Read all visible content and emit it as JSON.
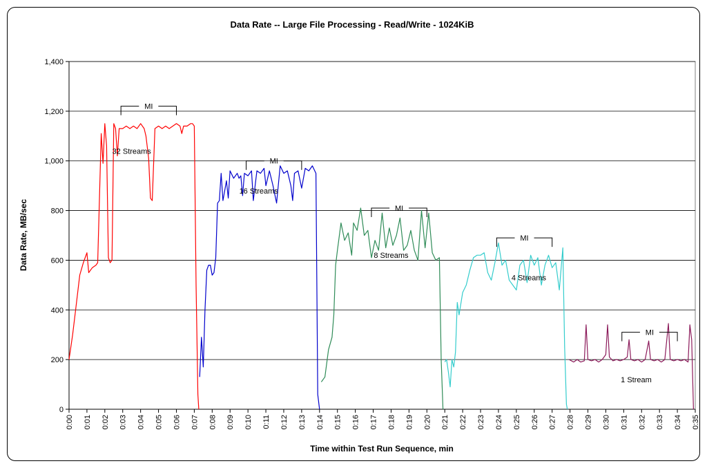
{
  "chart_data": {
    "type": "line",
    "title": "Data Rate -- Large File Processing - Read/Write - 1024KiB",
    "xlabel": "Time within Test Run Sequence, min",
    "ylabel": "Data Rate, MB/sec",
    "xlim": [
      0,
      35
    ],
    "ylim": [
      0,
      1400
    ],
    "grid": true,
    "y_ticks": [
      {
        "value": 0,
        "label": "0"
      },
      {
        "value": 200,
        "label": "200"
      },
      {
        "value": 400,
        "label": "400"
      },
      {
        "value": 600,
        "label": "600"
      },
      {
        "value": 800,
        "label": "800"
      },
      {
        "value": 1000,
        "label": "1,000"
      },
      {
        "value": 1200,
        "label": "1,200"
      },
      {
        "value": 1400,
        "label": "1,400"
      }
    ],
    "x_ticks": [
      "0:00",
      "0:01",
      "0:02",
      "0:03",
      "0:04",
      "0:05",
      "0:06",
      "0:07",
      "0:08",
      "0:09",
      "0:10",
      "0:11",
      "0:12",
      "0:13",
      "0:14",
      "0:15",
      "0:16",
      "0:17",
      "0:18",
      "0:19",
      "0:20",
      "0:21",
      "0:22",
      "0:23",
      "0:24",
      "0:25",
      "0:26",
      "0:27",
      "0:28",
      "0:29",
      "0:30",
      "0:31",
      "0:32",
      "0:33",
      "0:34",
      "0:35"
    ],
    "series": [
      {
        "label": "32 Streams",
        "color": "#ff0000",
        "points": [
          [
            0.0,
            200
          ],
          [
            0.2,
            300
          ],
          [
            0.4,
            420
          ],
          [
            0.6,
            540
          ],
          [
            0.8,
            590
          ],
          [
            1.0,
            630
          ],
          [
            1.1,
            550
          ],
          [
            1.3,
            570
          ],
          [
            1.5,
            580
          ],
          [
            1.6,
            590
          ],
          [
            1.8,
            1110
          ],
          [
            1.9,
            990
          ],
          [
            2.0,
            1150
          ],
          [
            2.1,
            1060
          ],
          [
            2.2,
            610
          ],
          [
            2.3,
            590
          ],
          [
            2.4,
            600
          ],
          [
            2.5,
            1150
          ],
          [
            2.6,
            1130
          ],
          [
            2.7,
            1020
          ],
          [
            2.8,
            1130
          ],
          [
            3.0,
            1130
          ],
          [
            3.2,
            1140
          ],
          [
            3.4,
            1130
          ],
          [
            3.6,
            1140
          ],
          [
            3.8,
            1130
          ],
          [
            4.0,
            1150
          ],
          [
            4.2,
            1130
          ],
          [
            4.3,
            1100
          ],
          [
            4.45,
            1010
          ],
          [
            4.55,
            850
          ],
          [
            4.65,
            840
          ],
          [
            4.8,
            1130
          ],
          [
            5.0,
            1140
          ],
          [
            5.2,
            1130
          ],
          [
            5.4,
            1140
          ],
          [
            5.6,
            1130
          ],
          [
            5.8,
            1140
          ],
          [
            6.0,
            1150
          ],
          [
            6.2,
            1140
          ],
          [
            6.3,
            1110
          ],
          [
            6.4,
            1140
          ],
          [
            6.6,
            1140
          ],
          [
            6.8,
            1150
          ],
          [
            6.9,
            1150
          ],
          [
            7.0,
            1140
          ],
          [
            7.1,
            500
          ],
          [
            7.2,
            60
          ],
          [
            7.25,
            0
          ]
        ]
      },
      {
        "label": "16 Streams",
        "color": "#0000cc",
        "points": [
          [
            7.3,
            130
          ],
          [
            7.4,
            290
          ],
          [
            7.5,
            170
          ],
          [
            7.6,
            400
          ],
          [
            7.7,
            560
          ],
          [
            7.8,
            580
          ],
          [
            7.9,
            580
          ],
          [
            8.0,
            540
          ],
          [
            8.1,
            550
          ],
          [
            8.2,
            610
          ],
          [
            8.3,
            830
          ],
          [
            8.4,
            840
          ],
          [
            8.5,
            950
          ],
          [
            8.6,
            840
          ],
          [
            8.8,
            920
          ],
          [
            8.9,
            850
          ],
          [
            9.0,
            960
          ],
          [
            9.2,
            930
          ],
          [
            9.4,
            950
          ],
          [
            9.5,
            930
          ],
          [
            9.6,
            940
          ],
          [
            9.7,
            860
          ],
          [
            9.8,
            950
          ],
          [
            10.0,
            940
          ],
          [
            10.2,
            960
          ],
          [
            10.3,
            840
          ],
          [
            10.5,
            960
          ],
          [
            10.7,
            950
          ],
          [
            10.9,
            970
          ],
          [
            11.0,
            900
          ],
          [
            11.2,
            960
          ],
          [
            11.4,
            900
          ],
          [
            11.6,
            830
          ],
          [
            11.8,
            980
          ],
          [
            12.0,
            950
          ],
          [
            12.2,
            960
          ],
          [
            12.4,
            900
          ],
          [
            12.5,
            840
          ],
          [
            12.6,
            950
          ],
          [
            12.8,
            960
          ],
          [
            13.0,
            890
          ],
          [
            13.2,
            970
          ],
          [
            13.4,
            960
          ],
          [
            13.6,
            980
          ],
          [
            13.8,
            950
          ],
          [
            13.9,
            60
          ],
          [
            14.0,
            0
          ]
        ]
      },
      {
        "label": "8 Streams",
        "color": "#2e8b57",
        "points": [
          [
            14.1,
            110
          ],
          [
            14.3,
            130
          ],
          [
            14.5,
            240
          ],
          [
            14.7,
            290
          ],
          [
            14.8,
            380
          ],
          [
            14.9,
            580
          ],
          [
            15.0,
            640
          ],
          [
            15.2,
            750
          ],
          [
            15.4,
            680
          ],
          [
            15.6,
            710
          ],
          [
            15.8,
            620
          ],
          [
            15.9,
            750
          ],
          [
            16.1,
            720
          ],
          [
            16.3,
            810
          ],
          [
            16.5,
            700
          ],
          [
            16.7,
            720
          ],
          [
            16.9,
            610
          ],
          [
            17.1,
            680
          ],
          [
            17.3,
            640
          ],
          [
            17.5,
            790
          ],
          [
            17.7,
            650
          ],
          [
            17.9,
            730
          ],
          [
            18.1,
            660
          ],
          [
            18.3,
            700
          ],
          [
            18.5,
            770
          ],
          [
            18.7,
            640
          ],
          [
            18.9,
            660
          ],
          [
            19.1,
            720
          ],
          [
            19.3,
            640
          ],
          [
            19.5,
            600
          ],
          [
            19.7,
            800
          ],
          [
            19.9,
            650
          ],
          [
            20.1,
            790
          ],
          [
            20.3,
            630
          ],
          [
            20.5,
            600
          ],
          [
            20.7,
            610
          ],
          [
            20.8,
            200
          ],
          [
            20.9,
            0
          ]
        ]
      },
      {
        "label": "4 Streams",
        "color": "#33cccc",
        "points": [
          [
            21.0,
            190
          ],
          [
            21.1,
            200
          ],
          [
            21.2,
            150
          ],
          [
            21.3,
            90
          ],
          [
            21.4,
            200
          ],
          [
            21.5,
            170
          ],
          [
            21.6,
            230
          ],
          [
            21.7,
            430
          ],
          [
            21.8,
            380
          ],
          [
            22.0,
            470
          ],
          [
            22.2,
            500
          ],
          [
            22.4,
            560
          ],
          [
            22.6,
            610
          ],
          [
            22.8,
            620
          ],
          [
            23.0,
            620
          ],
          [
            23.2,
            630
          ],
          [
            23.4,
            550
          ],
          [
            23.6,
            520
          ],
          [
            23.8,
            590
          ],
          [
            24.0,
            670
          ],
          [
            24.2,
            580
          ],
          [
            24.4,
            600
          ],
          [
            24.6,
            520
          ],
          [
            24.8,
            500
          ],
          [
            25.0,
            480
          ],
          [
            25.2,
            580
          ],
          [
            25.4,
            600
          ],
          [
            25.6,
            510
          ],
          [
            25.8,
            620
          ],
          [
            26.0,
            580
          ],
          [
            26.2,
            610
          ],
          [
            26.4,
            500
          ],
          [
            26.6,
            580
          ],
          [
            26.8,
            620
          ],
          [
            27.0,
            570
          ],
          [
            27.2,
            590
          ],
          [
            27.4,
            480
          ],
          [
            27.6,
            650
          ],
          [
            27.7,
            250
          ],
          [
            27.8,
            20
          ],
          [
            27.85,
            0
          ]
        ]
      },
      {
        "label": "1 Stream",
        "color": "#8b1a5a",
        "points": [
          [
            27.95,
            200
          ],
          [
            28.2,
            190
          ],
          [
            28.4,
            200
          ],
          [
            28.6,
            190
          ],
          [
            28.8,
            195
          ],
          [
            28.9,
            340
          ],
          [
            29.0,
            200
          ],
          [
            29.2,
            195
          ],
          [
            29.4,
            200
          ],
          [
            29.6,
            190
          ],
          [
            29.8,
            200
          ],
          [
            30.0,
            220
          ],
          [
            30.1,
            340
          ],
          [
            30.2,
            210
          ],
          [
            30.4,
            195
          ],
          [
            30.6,
            200
          ],
          [
            30.8,
            195
          ],
          [
            31.0,
            200
          ],
          [
            31.2,
            210
          ],
          [
            31.3,
            280
          ],
          [
            31.4,
            200
          ],
          [
            31.6,
            195
          ],
          [
            31.8,
            200
          ],
          [
            32.0,
            190
          ],
          [
            32.2,
            200
          ],
          [
            32.4,
            275
          ],
          [
            32.5,
            200
          ],
          [
            32.7,
            195
          ],
          [
            32.9,
            200
          ],
          [
            33.1,
            190
          ],
          [
            33.3,
            200
          ],
          [
            33.5,
            345
          ],
          [
            33.6,
            200
          ],
          [
            33.8,
            195
          ],
          [
            34.0,
            200
          ],
          [
            34.2,
            195
          ],
          [
            34.4,
            200
          ],
          [
            34.6,
            190
          ],
          [
            34.7,
            340
          ],
          [
            34.8,
            280
          ],
          [
            34.9,
            0
          ]
        ]
      }
    ],
    "annotations": [
      {
        "text": "32 Streams",
        "x": 3.5,
        "y": 1040
      },
      {
        "text": "16 Streams",
        "x": 10.6,
        "y": 880
      },
      {
        "text": "8 Streams",
        "x": 18.0,
        "y": 620
      },
      {
        "text": "4 Streams",
        "x": 25.7,
        "y": 530
      },
      {
        "text": "1 Stream",
        "x": 31.7,
        "y": 120
      }
    ],
    "mi_markers": [
      {
        "text": "MI",
        "x_start": 2.9,
        "x_end": 6.0,
        "y": 1220
      },
      {
        "text": "MI",
        "x_start": 9.9,
        "x_end": 13.0,
        "y": 1000
      },
      {
        "text": "MI",
        "x_start": 16.9,
        "x_end": 20.0,
        "y": 810
      },
      {
        "text": "MI",
        "x_start": 23.9,
        "x_end": 27.0,
        "y": 690
      },
      {
        "text": "MI",
        "x_start": 30.9,
        "x_end": 34.0,
        "y": 310
      }
    ]
  }
}
